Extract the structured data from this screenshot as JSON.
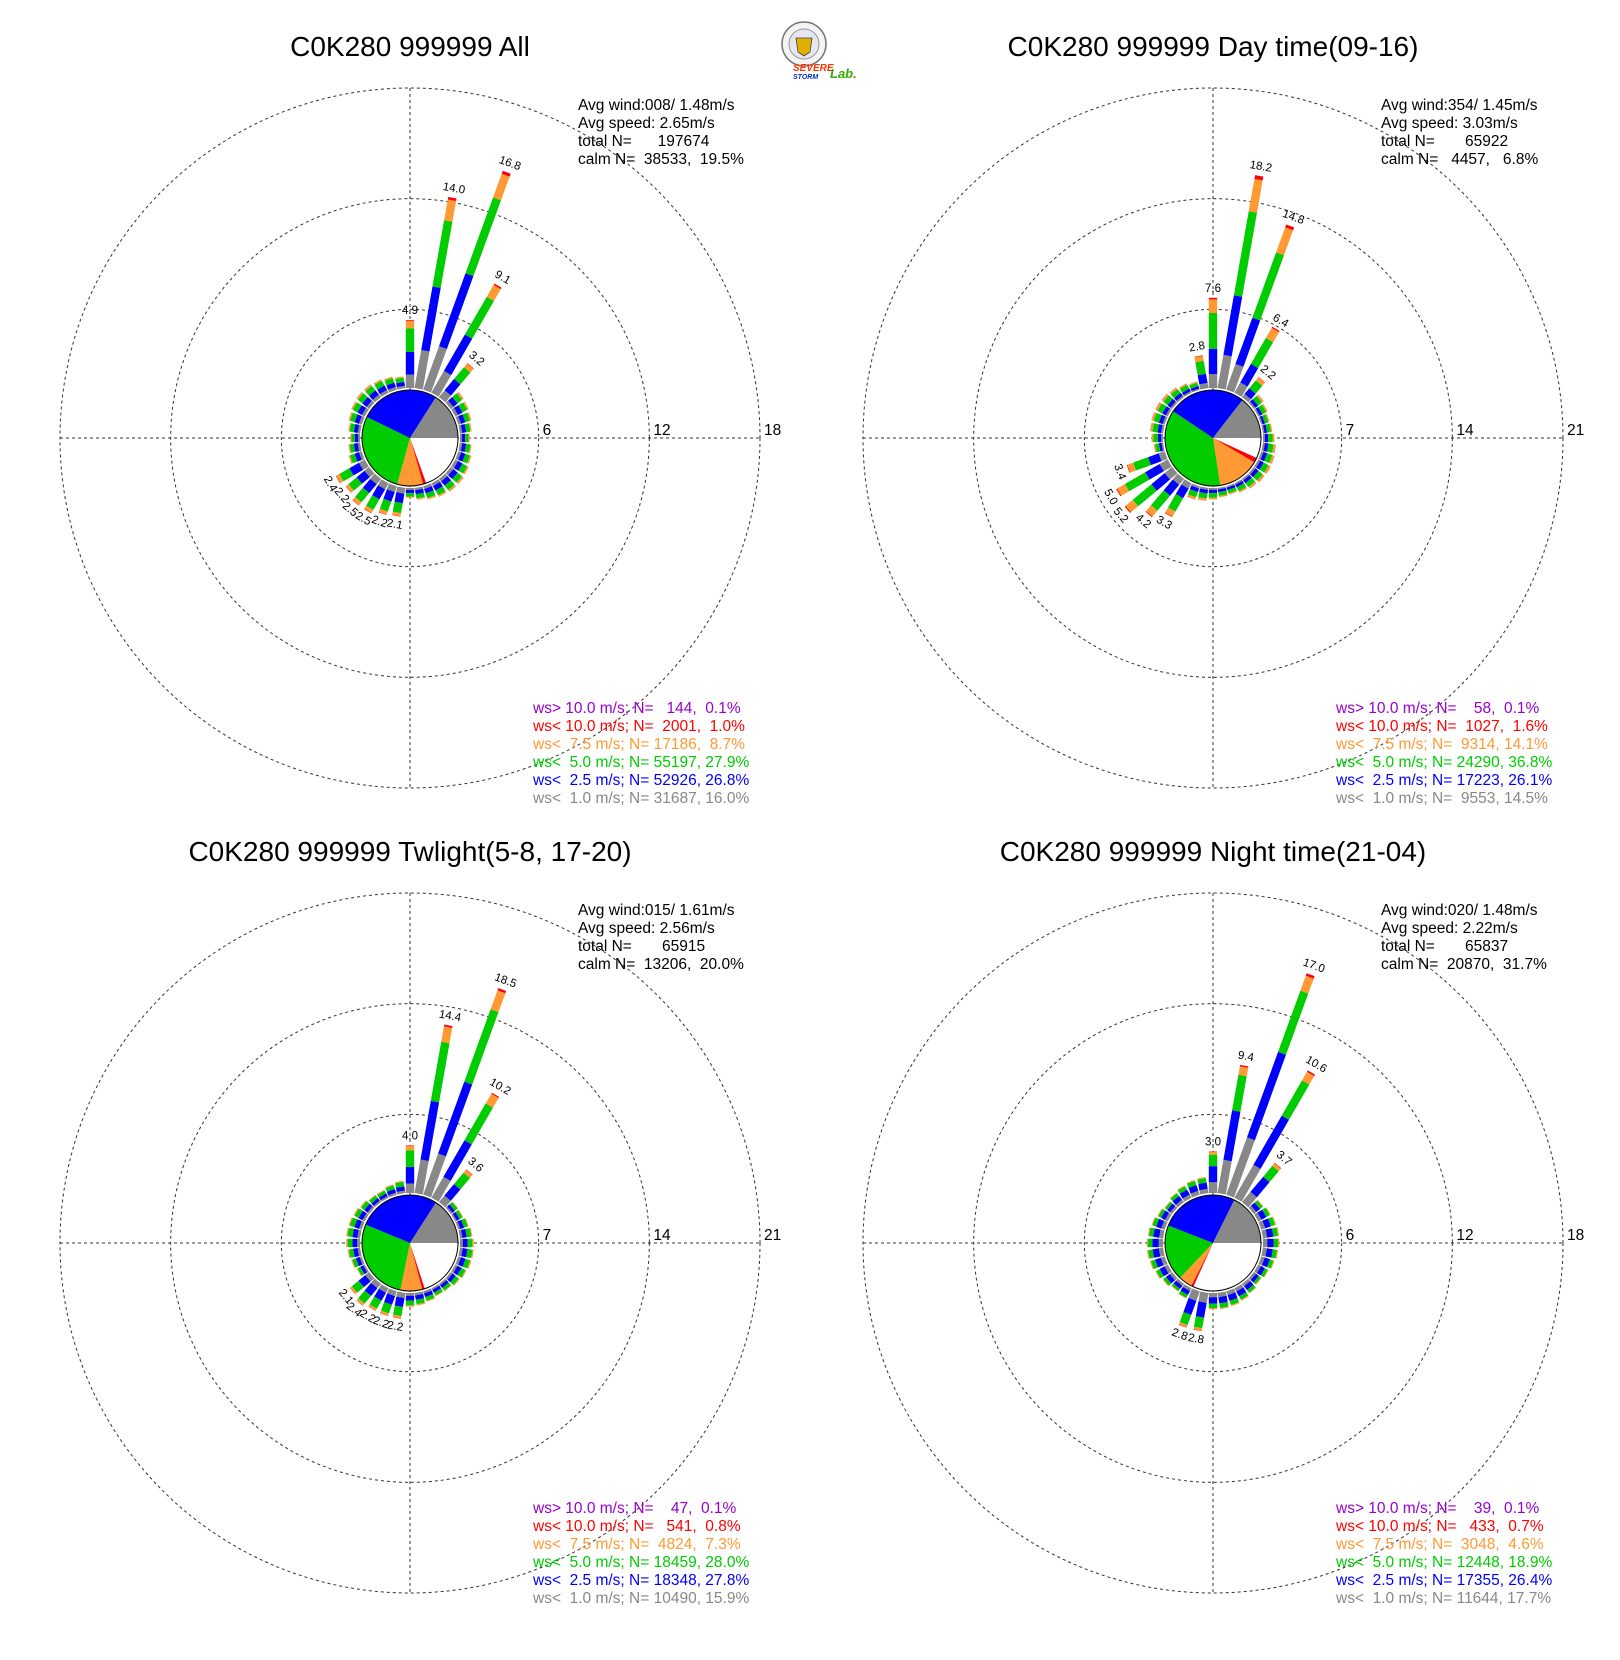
{
  "logo": {
    "name": "severe-storm-lab-logo",
    "text_severe": "SEVERE",
    "text_storm": "STORM",
    "text_lab": "Lab."
  },
  "colors": {
    "ws_gt10": "#9900cc",
    "ws_lt10": "#ff0000",
    "ws_lt7_5": "#ff9933",
    "ws_lt5": "#00cc00",
    "ws_lt2_5": "#0000ff",
    "ws_lt1": "#888888",
    "calm": "#ffffff"
  },
  "chart_data": [
    {
      "type": "windrose",
      "title": "C0K280 999999 All",
      "info": {
        "avg_wind": "Avg wind:008/ 1.48m/s",
        "avg_speed": "Avg speed: 2.65m/s",
        "total": "total N=      197674",
        "calm": "calm N=  38533,  19.5%"
      },
      "rmax": 18,
      "ticks": [
        "6",
        "12",
        "18"
      ],
      "tick_values": [
        6,
        12,
        18
      ],
      "labeled_bars": [
        {
          "dir": 0,
          "label": "4.9"
        },
        {
          "dir": 10,
          "label": "14.0"
        },
        {
          "dir": 20,
          "label": "16.8"
        },
        {
          "dir": 30,
          "label": "9.1"
        },
        {
          "dir": 40,
          "label": "3.2"
        },
        {
          "dir": 190,
          "label": "2.1"
        },
        {
          "dir": 200,
          "label": "2.2"
        },
        {
          "dir": 210,
          "label": "2.5"
        },
        {
          "dir": 220,
          "label": "2.5"
        },
        {
          "dir": 230,
          "label": "2.2"
        },
        {
          "dir": 240,
          "label": "2.4"
        }
      ],
      "bars": [
        {
          "dir": 0,
          "total": 4.9
        },
        {
          "dir": 10,
          "total": 14.0
        },
        {
          "dir": 20,
          "total": 16.8
        },
        {
          "dir": 30,
          "total": 9.1
        },
        {
          "dir": 40,
          "total": 3.2
        }
      ],
      "legend": [
        {
          "text": "ws> 10.0 m/s; N=   144,  0.1%",
          "color": "#9900cc"
        },
        {
          "text": "ws< 10.0 m/s; N=  2001,  1.0%",
          "color": "#ff0000"
        },
        {
          "text": "ws<  7.5 m/s; N= 17186,  8.7%",
          "color": "#ff9933"
        },
        {
          "text": "ws<  5.0 m/s; N= 55197, 27.9%",
          "color": "#00cc00"
        },
        {
          "text": "ws<  2.5 m/s; N= 52926, 26.8%",
          "color": "#0000ff"
        },
        {
          "text": "ws<  1.0 m/s; N= 31687, 16.0%",
          "color": "#888888"
        }
      ],
      "pie_percent": [
        19.5,
        0.1,
        1.0,
        8.7,
        27.9,
        26.8,
        16.0
      ]
    },
    {
      "type": "windrose",
      "title": "C0K280 999999 Day time(09-16)",
      "info": {
        "avg_wind": "Avg wind:354/ 1.45m/s",
        "avg_speed": "Avg speed: 3.03m/s",
        "total": "total N=       65922",
        "calm": "calm N=   4457,   6.8%"
      },
      "rmax": 21,
      "ticks": [
        "7",
        "14",
        "21"
      ],
      "tick_values": [
        7,
        14,
        21
      ],
      "labeled_bars": [
        {
          "dir": 350,
          "label": "2.8"
        },
        {
          "dir": 0,
          "label": "7.6"
        },
        {
          "dir": 10,
          "label": "18.2"
        },
        {
          "dir": 20,
          "label": "14.8"
        },
        {
          "dir": 30,
          "label": "6.4"
        },
        {
          "dir": 40,
          "label": "2.2"
        },
        {
          "dir": 210,
          "label": "3.3"
        },
        {
          "dir": 220,
          "label": "4.2"
        },
        {
          "dir": 230,
          "label": "5.2"
        },
        {
          "dir": 240,
          "label": "5.0"
        },
        {
          "dir": 250,
          "label": "3.4"
        }
      ],
      "bars": [
        {
          "dir": 350,
          "total": 2.8
        },
        {
          "dir": 0,
          "total": 7.6
        },
        {
          "dir": 10,
          "total": 18.2
        },
        {
          "dir": 20,
          "total": 14.8
        },
        {
          "dir": 30,
          "total": 6.4
        },
        {
          "dir": 40,
          "total": 2.2
        }
      ],
      "legend": [
        {
          "text": "ws> 10.0 m/s; N=    58,  0.1%",
          "color": "#9900cc"
        },
        {
          "text": "ws< 10.0 m/s; N=  1027,  1.6%",
          "color": "#ff0000"
        },
        {
          "text": "ws<  7.5 m/s; N=  9314, 14.1%",
          "color": "#ff9933"
        },
        {
          "text": "ws<  5.0 m/s; N= 24290, 36.8%",
          "color": "#00cc00"
        },
        {
          "text": "ws<  2.5 m/s; N= 17223, 26.1%",
          "color": "#0000ff"
        },
        {
          "text": "ws<  1.0 m/s; N=  9553, 14.5%",
          "color": "#888888"
        }
      ],
      "pie_percent": [
        6.8,
        0.1,
        1.6,
        14.1,
        36.8,
        26.1,
        14.5
      ]
    },
    {
      "type": "windrose",
      "title": "C0K280 999999 Twlight(5-8, 17-20)",
      "info": {
        "avg_wind": "Avg wind:015/ 1.61m/s",
        "avg_speed": "Avg speed: 2.56m/s",
        "total": "total N=       65915",
        "calm": "calm N=  13206,  20.0%"
      },
      "rmax": 21,
      "ticks": [
        "7",
        "14",
        "21"
      ],
      "tick_values": [
        7,
        14,
        21
      ],
      "labeled_bars": [
        {
          "dir": 0,
          "label": "4.0"
        },
        {
          "dir": 10,
          "label": "14.4"
        },
        {
          "dir": 20,
          "label": "18.5"
        },
        {
          "dir": 30,
          "label": "10.2"
        },
        {
          "dir": 40,
          "label": "3.6"
        },
        {
          "dir": 190,
          "label": "2.2"
        },
        {
          "dir": 200,
          "label": "2.2"
        },
        {
          "dir": 210,
          "label": "2.2"
        },
        {
          "dir": 220,
          "label": "2.4"
        },
        {
          "dir": 230,
          "label": "2.1"
        }
      ],
      "bars": [
        {
          "dir": 0,
          "total": 4.0
        },
        {
          "dir": 10,
          "total": 14.4
        },
        {
          "dir": 20,
          "total": 18.5
        },
        {
          "dir": 30,
          "total": 10.2
        },
        {
          "dir": 40,
          "total": 3.6
        }
      ],
      "legend": [
        {
          "text": "ws> 10.0 m/s; N=    47,  0.1%",
          "color": "#9900cc"
        },
        {
          "text": "ws< 10.0 m/s; N=   541,  0.8%",
          "color": "#ff0000"
        },
        {
          "text": "ws<  7.5 m/s; N=  4824,  7.3%",
          "color": "#ff9933"
        },
        {
          "text": "ws<  5.0 m/s; N= 18459, 28.0%",
          "color": "#00cc00"
        },
        {
          "text": "ws<  2.5 m/s; N= 18348, 27.8%",
          "color": "#0000ff"
        },
        {
          "text": "ws<  1.0 m/s; N= 10490, 15.9%",
          "color": "#888888"
        }
      ],
      "pie_percent": [
        20.0,
        0.1,
        0.8,
        7.3,
        28.0,
        27.8,
        15.9
      ]
    },
    {
      "type": "windrose",
      "title": "C0K280 999999 Night time(21-04)",
      "info": {
        "avg_wind": "Avg wind:020/ 1.48m/s",
        "avg_speed": "Avg speed: 2.22m/s",
        "total": "total N=       65837",
        "calm": "calm N=  20870,  31.7%"
      },
      "rmax": 18,
      "ticks": [
        "6",
        "12",
        "18"
      ],
      "tick_values": [
        6,
        12,
        18
      ],
      "labeled_bars": [
        {
          "dir": 0,
          "label": "3.0"
        },
        {
          "dir": 10,
          "label": "9.4"
        },
        {
          "dir": 20,
          "label": "17.0"
        },
        {
          "dir": 30,
          "label": "10.6"
        },
        {
          "dir": 40,
          "label": "3.7"
        },
        {
          "dir": 190,
          "label": "2.8"
        },
        {
          "dir": 200,
          "label": "2.8"
        }
      ],
      "bars": [
        {
          "dir": 0,
          "total": 3.0
        },
        {
          "dir": 10,
          "total": 9.4
        },
        {
          "dir": 20,
          "total": 17.0
        },
        {
          "dir": 30,
          "total": 10.6
        },
        {
          "dir": 40,
          "total": 3.7
        }
      ],
      "legend": [
        {
          "text": "ws> 10.0 m/s; N=    39,  0.1%",
          "color": "#9900cc"
        },
        {
          "text": "ws< 10.0 m/s; N=   433,  0.7%",
          "color": "#ff0000"
        },
        {
          "text": "ws<  7.5 m/s; N=  3048,  4.6%",
          "color": "#ff9933"
        },
        {
          "text": "ws<  5.0 m/s; N= 12448, 18.9%",
          "color": "#00cc00"
        },
        {
          "text": "ws<  2.5 m/s; N= 17355, 26.4%",
          "color": "#0000ff"
        },
        {
          "text": "ws<  1.0 m/s; N= 11644, 17.7%",
          "color": "#888888"
        }
      ],
      "pie_percent": [
        31.7,
        0.1,
        0.7,
        4.6,
        18.9,
        26.4,
        17.7
      ]
    }
  ]
}
